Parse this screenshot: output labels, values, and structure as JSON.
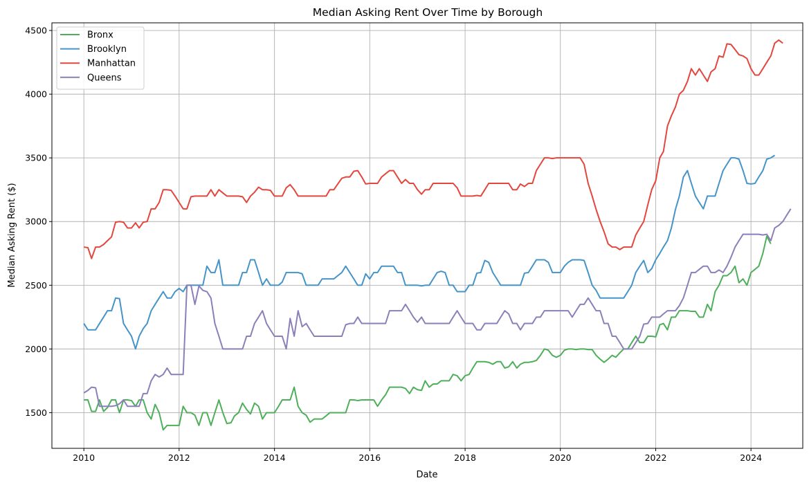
{
  "chart_data": {
    "type": "line",
    "title": "Median Asking Rent Over Time by Borough",
    "xlabel": "Date",
    "ylabel": "Median Asking Rent ($)",
    "xlim": [
      "2009-05-01",
      "2025-02-01"
    ],
    "ylim": [
      1220,
      4560
    ],
    "x_ticks": [
      {
        "date": "2010-01-01",
        "label": "2010"
      },
      {
        "date": "2012-01-01",
        "label": "2012"
      },
      {
        "date": "2014-01-01",
        "label": "2014"
      },
      {
        "date": "2016-01-01",
        "label": "2016"
      },
      {
        "date": "2018-01-01",
        "label": "2018"
      },
      {
        "date": "2020-01-01",
        "label": "2020"
      },
      {
        "date": "2022-01-01",
        "label": "2022"
      },
      {
        "date": "2024-01-01",
        "label": "2024"
      }
    ],
    "y_ticks": [
      1500,
      2000,
      2500,
      3000,
      3500,
      4000,
      4500
    ],
    "grid": true,
    "legend": "upper-left",
    "x_start": "2010-01",
    "x_end": "2024-06",
    "x_frequency": "monthly",
    "series": [
      {
        "name": "Bronx",
        "color": "#4daf5a",
        "values": [
          1600,
          1600,
          1510,
          1510,
          1600,
          1510,
          1540,
          1600,
          1600,
          1500,
          1600,
          1600,
          1595,
          1550,
          1600,
          1600,
          1500,
          1450,
          1565,
          1500,
          1365,
          1400,
          1400,
          1400,
          1400,
          1550,
          1500,
          1500,
          1480,
          1400,
          1500,
          1500,
          1400,
          1500,
          1600,
          1500,
          1415,
          1420,
          1475,
          1500,
          1575,
          1525,
          1490,
          1575,
          1550,
          1450,
          1500,
          1500,
          1500,
          1550,
          1600,
          1600,
          1600,
          1700,
          1550,
          1500,
          1480,
          1425,
          1450,
          1450,
          1450,
          1475,
          1500,
          1500,
          1500,
          1500,
          1500,
          1600,
          1600,
          1595,
          1600,
          1600,
          1600,
          1600,
          1550,
          1600,
          1640,
          1700,
          1700,
          1700,
          1700,
          1690,
          1650,
          1700,
          1680,
          1675,
          1750,
          1700,
          1725,
          1725,
          1750,
          1750,
          1750,
          1800,
          1790,
          1750,
          1790,
          1800,
          1850,
          1900,
          1900,
          1900,
          1895,
          1880,
          1900,
          1900,
          1850,
          1860,
          1900,
          1850,
          1880,
          1895,
          1895,
          1900,
          1910,
          1950,
          2000,
          1990,
          1950,
          1935,
          1950,
          1990,
          2000,
          2000,
          1995,
          2000,
          2000,
          1995,
          1995,
          1950,
          1920,
          1895,
          1920,
          1950,
          1935,
          1970,
          2000,
          2000,
          2050,
          2100,
          2050,
          2050,
          2100,
          2100,
          2095,
          2190,
          2200,
          2150,
          2250,
          2250,
          2300,
          2300,
          2300,
          2295,
          2295,
          2250,
          2250,
          2350,
          2300,
          2450,
          2500,
          2575,
          2575,
          2600,
          2650,
          2520,
          2550,
          2500,
          2600,
          2625,
          2650,
          2750,
          2885,
          2825
        ]
      },
      {
        "name": "Brooklyn",
        "color": "#4493c9",
        "values": [
          2200,
          2150,
          2150,
          2150,
          2200,
          2250,
          2300,
          2300,
          2400,
          2395,
          2200,
          2150,
          2100,
          2000,
          2100,
          2160,
          2200,
          2300,
          2350,
          2400,
          2450,
          2400,
          2400,
          2450,
          2475,
          2450,
          2500,
          2500,
          2500,
          2500,
          2500,
          2650,
          2600,
          2600,
          2700,
          2500,
          2500,
          2500,
          2500,
          2500,
          2600,
          2600,
          2700,
          2700,
          2600,
          2500,
          2550,
          2500,
          2500,
          2500,
          2525,
          2600,
          2600,
          2600,
          2600,
          2590,
          2500,
          2500,
          2500,
          2500,
          2550,
          2550,
          2550,
          2550,
          2575,
          2600,
          2650,
          2600,
          2550,
          2500,
          2500,
          2590,
          2550,
          2600,
          2600,
          2650,
          2650,
          2650,
          2650,
          2600,
          2600,
          2500,
          2500,
          2500,
          2500,
          2495,
          2500,
          2500,
          2550,
          2600,
          2610,
          2600,
          2500,
          2500,
          2450,
          2450,
          2450,
          2500,
          2500,
          2595,
          2600,
          2695,
          2680,
          2600,
          2550,
          2500,
          2500,
          2500,
          2500,
          2500,
          2500,
          2595,
          2600,
          2650,
          2700,
          2700,
          2700,
          2680,
          2600,
          2600,
          2600,
          2650,
          2680,
          2700,
          2700,
          2700,
          2695,
          2600,
          2500,
          2460,
          2400,
          2400,
          2400,
          2400,
          2400,
          2400,
          2400,
          2450,
          2500,
          2600,
          2650,
          2695,
          2600,
          2630,
          2700,
          2750,
          2800,
          2850,
          2950,
          3095,
          3200,
          3350,
          3400,
          3300,
          3200,
          3150,
          3100,
          3200,
          3200,
          3200,
          3300,
          3400,
          3450,
          3500,
          3500,
          3490,
          3400,
          3300,
          3295,
          3300,
          3350,
          3400,
          3490,
          3500,
          3520
        ]
      },
      {
        "name": "Manhattan",
        "color": "#e2463d",
        "values": [
          2800,
          2795,
          2710,
          2800,
          2800,
          2820,
          2850,
          2880,
          2995,
          3000,
          2995,
          2950,
          2950,
          2990,
          2950,
          2995,
          3000,
          3100,
          3100,
          3150,
          3250,
          3250,
          3245,
          3200,
          3150,
          3100,
          3100,
          3195,
          3200,
          3200,
          3200,
          3200,
          3250,
          3200,
          3250,
          3225,
          3200,
          3200,
          3200,
          3200,
          3195,
          3150,
          3200,
          3230,
          3270,
          3250,
          3250,
          3245,
          3200,
          3200,
          3200,
          3265,
          3290,
          3250,
          3200,
          3200,
          3200,
          3200,
          3200,
          3200,
          3200,
          3200,
          3250,
          3250,
          3295,
          3340,
          3350,
          3350,
          3395,
          3400,
          3350,
          3295,
          3300,
          3300,
          3300,
          3350,
          3375,
          3400,
          3400,
          3350,
          3300,
          3330,
          3300,
          3300,
          3250,
          3215,
          3250,
          3250,
          3300,
          3300,
          3300,
          3300,
          3300,
          3300,
          3265,
          3200,
          3200,
          3200,
          3200,
          3205,
          3200,
          3250,
          3300,
          3300,
          3300,
          3300,
          3300,
          3300,
          3250,
          3250,
          3295,
          3275,
          3300,
          3300,
          3400,
          3450,
          3500,
          3500,
          3495,
          3500,
          3500,
          3500,
          3500,
          3500,
          3500,
          3500,
          3450,
          3300,
          3200,
          3095,
          3000,
          2920,
          2825,
          2800,
          2800,
          2780,
          2800,
          2800,
          2800,
          2895,
          2950,
          3000,
          3130,
          3250,
          3320,
          3500,
          3550,
          3750,
          3830,
          3900,
          4000,
          4030,
          4100,
          4200,
          4150,
          4200,
          4150,
          4100,
          4175,
          4200,
          4300,
          4290,
          4395,
          4390,
          4350,
          4310,
          4300,
          4280,
          4200,
          4150,
          4150,
          4200,
          4250,
          4300,
          4400,
          4425,
          4400
        ]
      },
      {
        "name": "Queens",
        "color": "#8c7fb9",
        "values": [
          1655,
          1675,
          1700,
          1695,
          1550,
          1550,
          1550,
          1550,
          1555,
          1570,
          1600,
          1550,
          1550,
          1550,
          1550,
          1650,
          1650,
          1750,
          1800,
          1780,
          1800,
          1850,
          1800,
          1800,
          1800,
          1800,
          2500,
          2500,
          2350,
          2495,
          2460,
          2450,
          2400,
          2200,
          2100,
          2000,
          2000,
          2000,
          2000,
          2000,
          2000,
          2100,
          2100,
          2200,
          2250,
          2300,
          2200,
          2150,
          2100,
          2100,
          2100,
          2000,
          2240,
          2100,
          2300,
          2175,
          2200,
          2150,
          2100,
          2100,
          2100,
          2100,
          2100,
          2100,
          2100,
          2100,
          2190,
          2200,
          2200,
          2250,
          2200,
          2200,
          2200,
          2200,
          2200,
          2200,
          2200,
          2300,
          2300,
          2300,
          2300,
          2350,
          2300,
          2250,
          2210,
          2250,
          2200,
          2200,
          2200,
          2200,
          2200,
          2200,
          2200,
          2250,
          2300,
          2250,
          2200,
          2200,
          2200,
          2150,
          2150,
          2200,
          2200,
          2200,
          2200,
          2250,
          2300,
          2275,
          2200,
          2200,
          2150,
          2200,
          2200,
          2200,
          2250,
          2250,
          2300,
          2300,
          2300,
          2300,
          2300,
          2300,
          2300,
          2250,
          2300,
          2350,
          2350,
          2400,
          2350,
          2300,
          2300,
          2200,
          2200,
          2100,
          2100,
          2050,
          2000,
          2000,
          2000,
          2050,
          2100,
          2195,
          2200,
          2250,
          2250,
          2250,
          2275,
          2300,
          2300,
          2300,
          2340,
          2400,
          2500,
          2600,
          2600,
          2625,
          2650,
          2650,
          2600,
          2600,
          2620,
          2600,
          2650,
          2720,
          2800,
          2850,
          2900,
          2900,
          2900,
          2900,
          2900,
          2895,
          2900,
          2850,
          2950,
          2970,
          3000,
          3050,
          3100
        ]
      }
    ]
  }
}
